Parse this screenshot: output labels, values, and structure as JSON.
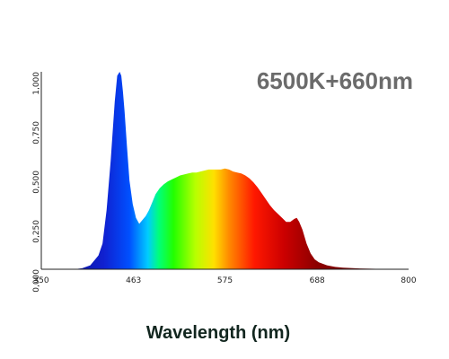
{
  "chart_data": {
    "type": "area",
    "title": "6500K+660nm",
    "xlabel": "Wavelength (nm)",
    "ylabel": "",
    "xlim": [
      350,
      800
    ],
    "ylim": [
      0,
      1
    ],
    "x_ticks": [
      350,
      463,
      575,
      688,
      800
    ],
    "x_tick_labels": [
      "350",
      "463",
      "575",
      "688",
      "800"
    ],
    "y_ticks": [
      0,
      0.25,
      0.5,
      0.75,
      1
    ],
    "y_tick_labels": [
      "0,000",
      "0,250",
      "0,500",
      "0,750",
      "1,000"
    ],
    "grid": false,
    "legend": "none",
    "fill": "spectral-gradient",
    "spectrum_colors": [
      "#0a0c6e",
      "#1020d0",
      "#0050ff",
      "#00ccff",
      "#00ff7a",
      "#22ff00",
      "#b8ff00",
      "#ffe000",
      "#ff8c00",
      "#ff1800",
      "#cc0000",
      "#8c0000",
      "#5a0a0a"
    ],
    "spectrum_stops": [
      0.0,
      0.17,
      0.24,
      0.29,
      0.32,
      0.36,
      0.42,
      0.47,
      0.51,
      0.58,
      0.66,
      0.75,
      1.0
    ],
    "series": [
      {
        "x": [
          350,
          390,
          400,
          410,
          420,
          425,
          430,
          435,
          440,
          443,
          446,
          448,
          450,
          452,
          455,
          458,
          462,
          466,
          470,
          474,
          478,
          482,
          486,
          490,
          495,
          500,
          505,
          510,
          515,
          520,
          525,
          530,
          535,
          540,
          545,
          550,
          555,
          560,
          565,
          570,
          575,
          580,
          585,
          590,
          595,
          600,
          605,
          610,
          615,
          620,
          625,
          630,
          635,
          640,
          645,
          650,
          655,
          660,
          663,
          666,
          670,
          675,
          680,
          685,
          690,
          700,
          710,
          720,
          740,
          760,
          800
        ],
        "values": [
          0,
          0,
          0.005,
          0.02,
          0.07,
          0.13,
          0.3,
          0.55,
          0.85,
          0.98,
          1.0,
          0.98,
          0.9,
          0.8,
          0.62,
          0.45,
          0.33,
          0.26,
          0.23,
          0.25,
          0.27,
          0.3,
          0.34,
          0.38,
          0.41,
          0.43,
          0.445,
          0.455,
          0.465,
          0.475,
          0.48,
          0.485,
          0.49,
          0.49,
          0.495,
          0.5,
          0.505,
          0.505,
          0.505,
          0.505,
          0.51,
          0.505,
          0.495,
          0.49,
          0.485,
          0.475,
          0.46,
          0.44,
          0.415,
          0.385,
          0.355,
          0.325,
          0.3,
          0.28,
          0.26,
          0.24,
          0.24,
          0.255,
          0.26,
          0.24,
          0.2,
          0.13,
          0.08,
          0.05,
          0.035,
          0.02,
          0.012,
          0.008,
          0.004,
          0.002,
          0
        ]
      }
    ]
  }
}
